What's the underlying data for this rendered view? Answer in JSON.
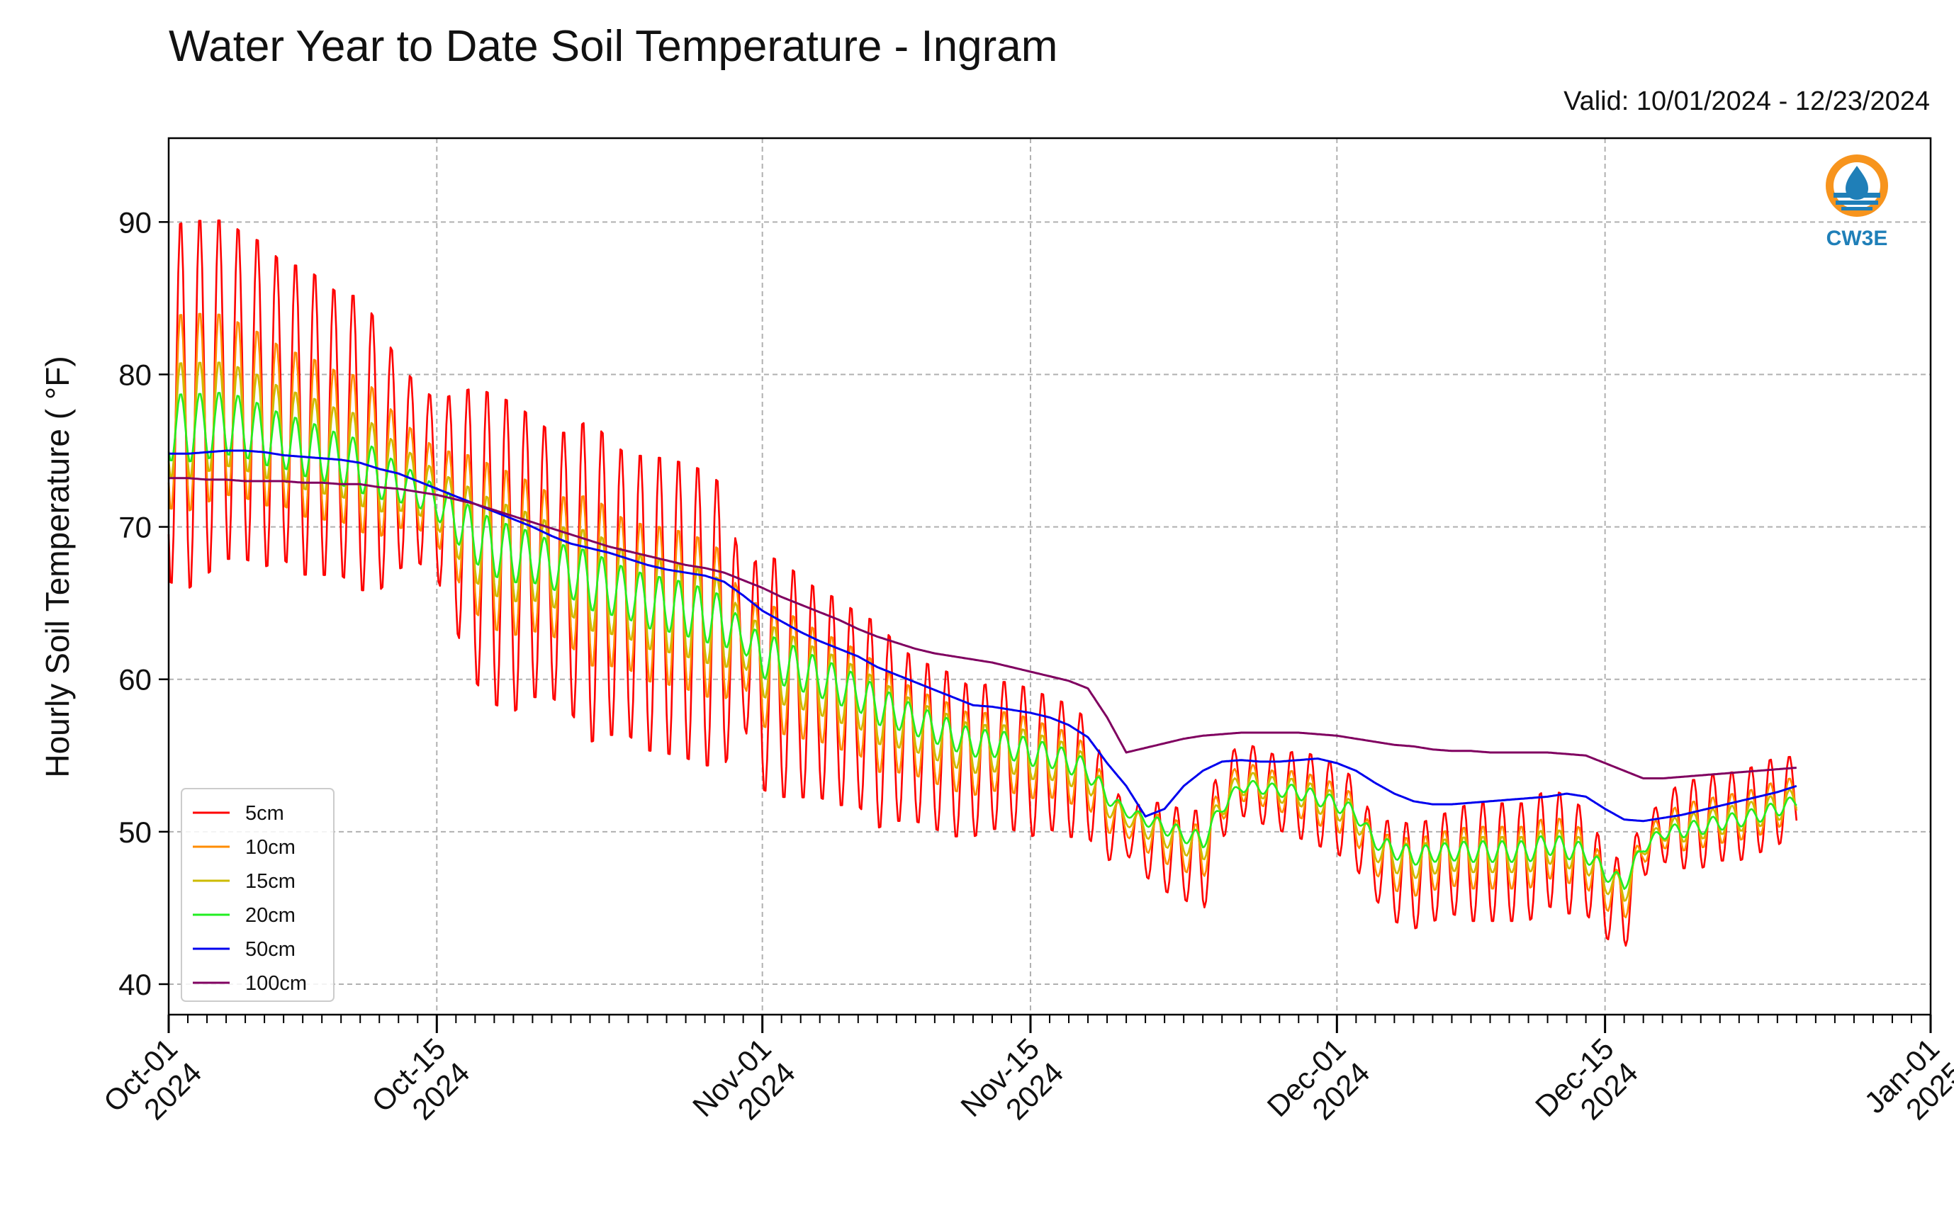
{
  "chart_data": {
    "type": "line",
    "title": "Water Year to Date Soil Temperature - Ingram",
    "subtitle": "Valid: 10/01/2024 - 12/23/2024",
    "ylabel": "Hourly Soil Temperature ( °F)",
    "xlabel": "",
    "xlim": [
      "2024-10-01",
      "2025-01-01"
    ],
    "ylim": [
      38,
      95.5
    ],
    "yticks": [
      40,
      50,
      60,
      70,
      80,
      90
    ],
    "ytick_labels": [
      "40",
      "50",
      "60",
      "70",
      "80",
      "90"
    ],
    "xticks": [
      {
        "date": "2024-10-01",
        "line1": "Oct-01",
        "line2": "2024"
      },
      {
        "date": "2024-10-15",
        "line1": "Oct-15",
        "line2": "2024"
      },
      {
        "date": "2024-11-01",
        "line1": "Nov-01",
        "line2": "2024"
      },
      {
        "date": "2024-11-15",
        "line1": "Nov-15",
        "line2": "2024"
      },
      {
        "date": "2024-12-01",
        "line1": "Dec-01",
        "line2": "2024"
      },
      {
        "date": "2024-12-15",
        "line1": "Dec-15",
        "line2": "2024"
      },
      {
        "date": "2025-01-01",
        "line1": "Jan-01",
        "line2": "2025"
      }
    ],
    "grid": true,
    "legend_position": "bottom-left",
    "logo_text": "CW3E",
    "series": [
      {
        "name": "5cm",
        "color": "#ff0000",
        "daily_mean": [
          78,
          78,
          78.5,
          79,
          78.5,
          78,
          77.5,
          77,
          76.5,
          76,
          75.5,
          74.5,
          74,
          73.5,
          72.5,
          71,
          69.5,
          68.5,
          68,
          68,
          67.5,
          67,
          66.5,
          66,
          65.5,
          65,
          64.8,
          64.5,
          64,
          63.5,
          62,
          60.5,
          60,
          59.5,
          59,
          58.5,
          58,
          57,
          56.5,
          56,
          55.5,
          55,
          54.5,
          55,
          55,
          54.5,
          54.5,
          54,
          53.5,
          51,
          50,
          49.5,
          49,
          48.5,
          48,
          52,
          53.5,
          53,
          52.5,
          52.5,
          52,
          51.5,
          50.5,
          48,
          47.5,
          47,
          47.5,
          48,
          48,
          48,
          48,
          48,
          49,
          48.5,
          48,
          46,
          45,
          49,
          50,
          50.5,
          50.5,
          51,
          51,
          51.5,
          52,
          52.5
        ],
        "daily_amp": [
          12,
          12.5,
          12,
          11.5,
          11,
          11,
          10,
          10.5,
          10,
          9.5,
          10,
          9,
          7,
          6,
          6,
          8,
          10,
          10.5,
          10.5,
          9.5,
          9,
          9.5,
          11,
          10,
          9.5,
          10,
          10,
          10,
          10,
          9.5,
          5,
          8,
          8,
          7.5,
          7,
          7,
          6.5,
          7,
          6,
          5.5,
          5.5,
          5.5,
          5,
          5,
          5,
          5,
          4.5,
          4.5,
          4,
          3,
          1.5,
          2.5,
          3,
          3,
          3.5,
          2.5,
          2.5,
          2.5,
          2.5,
          3,
          3,
          3,
          3,
          2.5,
          3.5,
          3.5,
          3.5,
          3.5,
          4,
          4,
          4,
          4,
          4,
          4,
          3.5,
          3,
          3,
          2,
          2,
          3,
          3,
          3,
          3,
          3,
          3,
          2.5
        ]
      },
      {
        "name": "10cm",
        "color": "#ff8c00",
        "daily_mean": [
          77.5,
          77.5,
          77.8,
          78,
          77.5,
          77,
          76.5,
          76,
          75.6,
          75.2,
          74.8,
          74,
          73.5,
          73,
          72,
          70.8,
          69.5,
          68.6,
          68.2,
          68,
          67.5,
          67,
          66.5,
          66,
          65.5,
          65,
          64.8,
          64.5,
          64,
          63.5,
          62.3,
          61,
          60.5,
          60,
          59.5,
          59,
          58.5,
          57.5,
          57,
          56.5,
          56,
          55.5,
          55,
          55.3,
          55.2,
          54.8,
          54.6,
          54.2,
          53.6,
          51.5,
          50.5,
          50,
          49.5,
          49,
          48.6,
          52,
          53.3,
          53,
          52.6,
          52.5,
          52,
          51.6,
          50.8,
          48.5,
          48,
          47.6,
          48,
          48.3,
          48.3,
          48.3,
          48.3,
          48.3,
          49,
          48.7,
          48.2,
          46.5,
          45.6,
          49,
          50,
          50.3,
          50.5,
          50.8,
          51,
          51.3,
          51.8,
          52.3
        ],
        "daily_amp": [
          6.5,
          6.7,
          6.4,
          6.1,
          5.8,
          5.8,
          5.3,
          5.5,
          5.3,
          5,
          5.3,
          4.8,
          3.7,
          3.2,
          3.2,
          4.2,
          5.3,
          5.5,
          5.5,
          5,
          4.8,
          5,
          5.8,
          5.3,
          5,
          5.3,
          5.3,
          5.3,
          5.3,
          5,
          2.7,
          4.2,
          4.2,
          4,
          3.7,
          3.7,
          3.5,
          3.7,
          3.2,
          2.9,
          2.9,
          2.9,
          2.7,
          2.7,
          2.7,
          2.7,
          2.4,
          2.4,
          2.1,
          1.6,
          0.8,
          1.3,
          1.6,
          1.6,
          1.9,
          1.3,
          1.3,
          1.3,
          1.3,
          1.6,
          1.6,
          1.6,
          1.6,
          1.3,
          1.9,
          1.9,
          1.9,
          1.9,
          2.1,
          2.1,
          2.1,
          2.1,
          2.1,
          2.1,
          1.9,
          1.6,
          1.6,
          1.1,
          1.1,
          1.6,
          1.6,
          1.6,
          1.6,
          1.6,
          1.6,
          1.3
        ]
      },
      {
        "name": "15cm",
        "color": "#cdbb00",
        "daily_mean": [
          77,
          77,
          77.2,
          77.4,
          77,
          76.5,
          76,
          75.6,
          75.2,
          74.8,
          74.4,
          73.7,
          73.2,
          72.7,
          71.8,
          70.6,
          69.4,
          68.6,
          68.2,
          68,
          67.5,
          67,
          66.5,
          66,
          65.5,
          65,
          64.8,
          64.5,
          64.1,
          63.6,
          62.5,
          61.3,
          60.8,
          60.3,
          59.8,
          59.3,
          58.8,
          57.9,
          57.4,
          56.9,
          56.4,
          55.9,
          55.4,
          55.5,
          55.4,
          55,
          54.8,
          54.4,
          53.8,
          51.9,
          50.9,
          50.4,
          49.9,
          49.4,
          49,
          51.8,
          53.2,
          53,
          52.7,
          52.6,
          52.1,
          51.7,
          51,
          48.9,
          48.4,
          48,
          48.3,
          48.5,
          48.5,
          48.5,
          48.5,
          48.5,
          49.1,
          48.8,
          48.4,
          46.9,
          46.1,
          49,
          50,
          50.2,
          50.4,
          50.7,
          50.9,
          51.2,
          51.6,
          52.1
        ],
        "daily_amp": [
          3.8,
          3.9,
          3.7,
          3.5,
          3.4,
          3.4,
          3.1,
          3.2,
          3.1,
          2.9,
          3.1,
          2.8,
          2.2,
          1.9,
          1.9,
          2.5,
          3.1,
          3.2,
          3.2,
          2.9,
          2.8,
          2.9,
          3.4,
          3.1,
          2.9,
          3.1,
          3.1,
          3.1,
          3.1,
          2.9,
          1.6,
          2.5,
          2.5,
          2.3,
          2.2,
          2.2,
          2,
          2.2,
          1.9,
          1.7,
          1.7,
          1.7,
          1.6,
          1.6,
          1.6,
          1.6,
          1.4,
          1.4,
          1.2,
          0.9,
          0.5,
          0.8,
          0.9,
          0.9,
          1.1,
          0.8,
          0.8,
          0.8,
          0.8,
          0.9,
          0.9,
          0.9,
          0.9,
          0.8,
          1.1,
          1.1,
          1.1,
          1.1,
          1.2,
          1.2,
          1.2,
          1.2,
          1.2,
          1.2,
          1.1,
          0.9,
          0.9,
          0.6,
          0.6,
          0.9,
          0.9,
          0.9,
          0.9,
          0.9,
          0.9,
          0.8
        ]
      },
      {
        "name": "20cm",
        "color": "#22ee22",
        "daily_mean": [
          76.5,
          76.5,
          76.6,
          76.8,
          76.5,
          76,
          75.6,
          75.2,
          74.8,
          74.4,
          74,
          73.4,
          72.9,
          72.4,
          71.6,
          70.5,
          69.4,
          68.6,
          68.2,
          68,
          67.5,
          67,
          66.5,
          66,
          65.6,
          65.1,
          64.9,
          64.6,
          64.2,
          63.8,
          62.7,
          61.6,
          61.1,
          60.6,
          60.1,
          59.6,
          59.1,
          58.3,
          57.8,
          57.3,
          56.8,
          56.3,
          55.8,
          55.8,
          55.6,
          55.2,
          55,
          54.6,
          54,
          52.3,
          51.3,
          50.8,
          50.3,
          49.8,
          49.4,
          51.6,
          53,
          52.9,
          52.7,
          52.6,
          52.2,
          51.8,
          51.2,
          49.3,
          48.8,
          48.4,
          48.6,
          48.7,
          48.7,
          48.7,
          48.7,
          48.7,
          49.2,
          48.9,
          48.6,
          47.3,
          46.6,
          49,
          49.9,
          50.1,
          50.3,
          50.6,
          50.8,
          51.1,
          51.5,
          52
        ],
        "daily_amp": [
          2.2,
          2.3,
          2.2,
          2.1,
          2,
          2,
          1.8,
          1.9,
          1.8,
          1.7,
          1.8,
          1.6,
          1.3,
          1.1,
          1.1,
          1.5,
          1.8,
          1.9,
          1.9,
          1.7,
          1.6,
          1.7,
          2,
          1.8,
          1.7,
          1.8,
          1.8,
          1.8,
          1.8,
          1.7,
          0.9,
          1.5,
          1.5,
          1.4,
          1.3,
          1.3,
          1.2,
          1.3,
          1.1,
          1,
          1,
          1,
          0.9,
          0.9,
          0.9,
          0.9,
          0.8,
          0.8,
          0.7,
          0.5,
          0.3,
          0.4,
          0.5,
          0.5,
          0.6,
          0.4,
          0.4,
          0.4,
          0.4,
          0.5,
          0.5,
          0.5,
          0.5,
          0.4,
          0.6,
          0.6,
          0.6,
          0.6,
          0.7,
          0.7,
          0.7,
          0.7,
          0.7,
          0.7,
          0.6,
          0.5,
          0.5,
          0.4,
          0.4,
          0.5,
          0.5,
          0.5,
          0.5,
          0.5,
          0.5,
          0.4
        ]
      },
      {
        "name": "50cm",
        "color": "#0000ee",
        "daily_mean": [
          74.8,
          74.8,
          74.9,
          75,
          75,
          74.9,
          74.7,
          74.6,
          74.5,
          74.4,
          74.2,
          73.8,
          73.5,
          73,
          72.5,
          72,
          71.5,
          71,
          70.5,
          70,
          69.4,
          68.9,
          68.6,
          68.3,
          67.9,
          67.5,
          67.2,
          67,
          66.8,
          66.4,
          65.5,
          64.5,
          63.8,
          63.1,
          62.5,
          62,
          61.5,
          60.8,
          60.3,
          59.8,
          59.3,
          58.8,
          58.3,
          58.2,
          58,
          57.8,
          57.5,
          57,
          56.2,
          54.5,
          53,
          51,
          51.5,
          53,
          54,
          54.6,
          54.7,
          54.6,
          54.6,
          54.7,
          54.8,
          54.5,
          54,
          53.2,
          52.5,
          52,
          51.8,
          51.8,
          51.9,
          52,
          52.1,
          52.2,
          52.3,
          52.5,
          52.3,
          51.5,
          50.8,
          50.7,
          50.9,
          51.1,
          51.4,
          51.7,
          52,
          52.3,
          52.6,
          53
        ]
      },
      {
        "name": "100cm",
        "color": "#800060",
        "daily_mean": [
          73.2,
          73.2,
          73.1,
          73.1,
          73,
          73,
          73,
          72.9,
          72.9,
          72.8,
          72.8,
          72.6,
          72.5,
          72.3,
          72.1,
          71.8,
          71.5,
          71.1,
          70.7,
          70.3,
          69.9,
          69.5,
          69.1,
          68.7,
          68.4,
          68.1,
          67.8,
          67.5,
          67.3,
          67,
          66.5,
          66,
          65.4,
          64.9,
          64.4,
          63.9,
          63.3,
          62.8,
          62.4,
          62,
          61.7,
          61.5,
          61.3,
          61.1,
          60.8,
          60.5,
          60.2,
          59.9,
          59.4,
          57.5,
          55.2,
          55.5,
          55.8,
          56.1,
          56.3,
          56.4,
          56.5,
          56.5,
          56.5,
          56.5,
          56.4,
          56.3,
          56.1,
          55.9,
          55.7,
          55.6,
          55.4,
          55.3,
          55.3,
          55.2,
          55.2,
          55.2,
          55.2,
          55.1,
          55,
          54.5,
          54,
          53.5,
          53.5,
          53.6,
          53.7,
          53.8,
          53.9,
          54,
          54.1,
          54.2
        ]
      }
    ]
  }
}
